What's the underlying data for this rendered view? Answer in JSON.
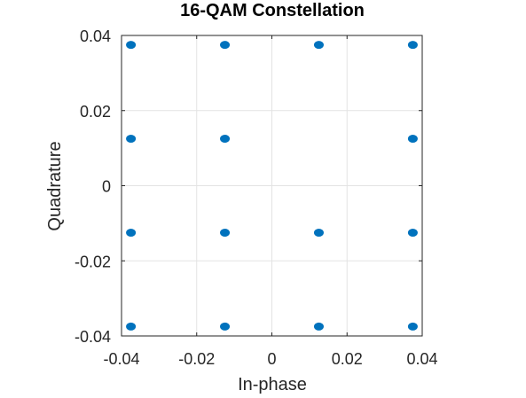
{
  "chart_data": {
    "type": "scatter",
    "title": "16-QAM Constellation",
    "xlabel": "In-phase",
    "ylabel": "Quadrature",
    "xlim": [
      -0.04,
      0.04
    ],
    "ylim": [
      -0.04,
      0.04
    ],
    "x_ticks": [
      -0.04,
      -0.02,
      0,
      0.02,
      0.04
    ],
    "y_ticks": [
      -0.04,
      -0.02,
      0,
      0.02,
      0.04
    ],
    "x_tick_labels": [
      "-0.04",
      "-0.02",
      "0",
      "0.02",
      "0.04"
    ],
    "y_tick_labels": [
      "-0.04",
      "-0.02",
      "0",
      "0.02",
      "0.04"
    ],
    "grid": true,
    "marker_color": "#0072BD",
    "series": [
      {
        "points": [
          [
            -0.0375,
            0.0375
          ],
          [
            -0.0125,
            0.0375
          ],
          [
            0.0125,
            0.0375
          ],
          [
            0.0375,
            0.0375
          ],
          [
            -0.0375,
            0.0125
          ],
          [
            -0.0125,
            0.0125
          ],
          [
            0.0375,
            0.0125
          ],
          [
            -0.0375,
            -0.0125
          ],
          [
            -0.0125,
            -0.0125
          ],
          [
            0.0125,
            -0.0125
          ],
          [
            0.0375,
            -0.0125
          ],
          [
            -0.0375,
            -0.0375
          ],
          [
            -0.0125,
            -0.0375
          ],
          [
            0.0125,
            -0.0375
          ],
          [
            0.0375,
            -0.0375
          ]
        ]
      }
    ]
  }
}
